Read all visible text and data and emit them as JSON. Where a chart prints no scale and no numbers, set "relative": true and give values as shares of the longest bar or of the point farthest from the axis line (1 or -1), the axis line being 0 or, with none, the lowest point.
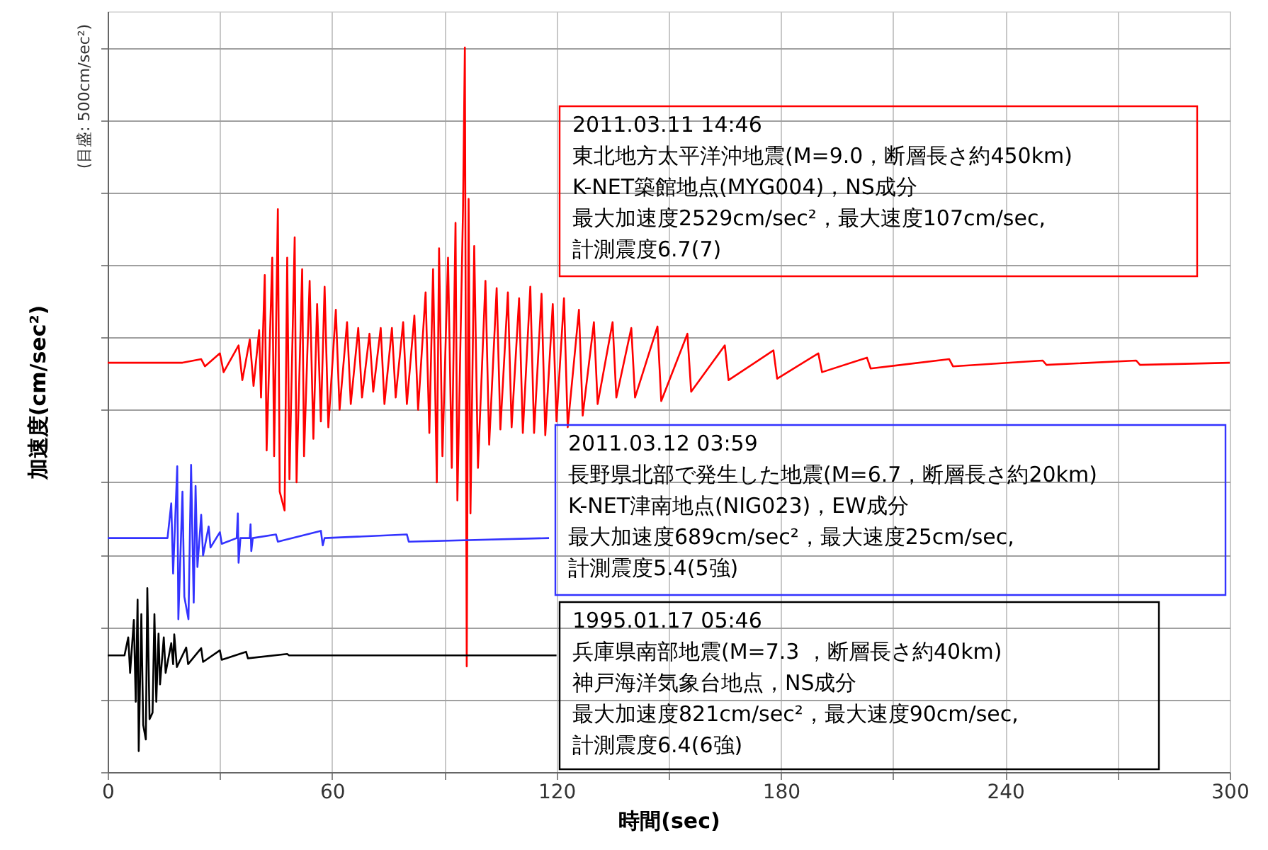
{
  "chart_data": {
    "type": "line",
    "relative": true,
    "xlabel": "時間(sec)",
    "ylabel": "加速度(cm/sec²)",
    "xlim": [
      0,
      300
    ],
    "xticks": [
      0,
      {
        "value": 30,
        "label": null
      },
      60,
      {
        "value": 90,
        "label": null
      },
      120,
      {
        "value": 150,
        "label": null
      },
      180,
      {
        "value": 210,
        "label": null
      },
      240,
      {
        "value": 270,
        "label": null
      },
      300
    ],
    "tick_labels": "x",
    "grid": true,
    "marker": "none",
    "line_style": "solid",
    "series": [
      {
        "color": "#ff0000",
        "x": [
          0,
          20,
          25,
          26,
          30,
          31,
          35,
          36,
          38,
          39,
          40.5,
          41,
          42,
          42.5,
          44,
          44.5,
          45.5,
          46,
          47.3,
          48,
          48.6,
          50,
          50.5,
          52,
          52.5,
          54,
          55,
          56,
          57,
          58,
          59,
          61,
          62,
          64,
          65,
          67,
          68,
          70,
          71,
          73,
          74,
          76,
          77,
          79,
          80,
          82,
          83,
          85,
          86,
          87,
          88,
          88.6,
          89.5,
          91,
          92,
          93,
          93.5,
          95,
          95.5,
          96,
          96.5,
          97,
          98,
          99,
          101,
          102,
          104,
          105,
          107,
          108,
          110,
          111,
          113,
          114,
          116,
          117,
          119,
          120,
          122,
          123,
          126,
          127,
          130,
          131,
          135,
          136,
          140,
          141,
          147,
          148,
          155,
          156,
          165,
          166,
          178,
          179,
          190,
          191,
          203,
          204,
          225,
          226,
          250,
          251,
          275,
          276,
          300
        ],
        "values": [
          0.565,
          0.565,
          0.57,
          0.56,
          0.578,
          0.552,
          0.589,
          0.541,
          0.597,
          0.533,
          0.61,
          0.517,
          0.686,
          0.444,
          0.71,
          0.436,
          0.777,
          0.387,
          0.361,
          0.71,
          0.404,
          0.738,
          0.4,
          0.694,
          0.436,
          0.678,
          0.46,
          0.646,
          0.484,
          0.67,
          0.476,
          0.638,
          0.5,
          0.621,
          0.508,
          0.613,
          0.517,
          0.605,
          0.525,
          0.613,
          0.508,
          0.613,
          0.517,
          0.621,
          0.508,
          0.63,
          0.5,
          0.662,
          0.468,
          0.694,
          0.4,
          0.723,
          0.436,
          0.71,
          0.42,
          0.758,
          0.375,
          0.775,
          1,
          0.146,
          0.791,
          0.357,
          0.726,
          0.42,
          0.678,
          0.452,
          0.668,
          0.473,
          0.662,
          0.476,
          0.654,
          0.468,
          0.67,
          0.468,
          0.66,
          0.465,
          0.646,
          0.484,
          0.654,
          0.476,
          0.638,
          0.492,
          0.621,
          0.508,
          0.621,
          0.517,
          0.613,
          0.517,
          0.615,
          0.512,
          0.605,
          0.525,
          0.589,
          0.541,
          0.582,
          0.543,
          0.578,
          0.552,
          0.572,
          0.557,
          0.57,
          0.56,
          0.568,
          0.562,
          0.568,
          0.562,
          0.565
        ]
      },
      {
        "color": "#3333ff",
        "x": [
          0,
          16,
          17,
          17.5,
          18.6,
          18.9,
          20,
          20.5,
          21.6,
          22.3,
          23,
          23.5,
          24,
          25,
          25.5,
          27,
          27.5,
          30,
          30.5,
          34.5,
          34.8,
          35,
          35.5,
          38,
          38.2,
          38.4,
          38.8,
          45,
          45.5,
          57,
          57.5,
          58,
          80,
          80.5,
          118
        ],
        "values": [
          0.323,
          0.323,
          0.371,
          0.274,
          0.422,
          0.211,
          0.387,
          0.242,
          0.211,
          0.424,
          0.234,
          0.395,
          0.283,
          0.355,
          0.299,
          0.339,
          0.31,
          0.331,
          0.315,
          0.323,
          0.357,
          0.289,
          0.323,
          0.323,
          0.342,
          0.305,
          0.323,
          0.328,
          0.318,
          0.333,
          0.313,
          0.323,
          0.328,
          0.318,
          0.323
        ]
      },
      {
        "color": "#000000",
        "x": [
          0,
          4.5,
          5.5,
          6,
          7,
          7.5,
          8,
          8.3,
          9,
          9.5,
          10.2,
          10.6,
          11.2,
          12,
          12.5,
          13,
          13.6,
          14,
          15,
          15.5,
          17,
          17.5,
          17.8,
          18.5,
          21,
          21.5,
          25,
          25.5,
          30,
          30.5,
          37,
          37.5,
          48,
          48.5,
          120
        ],
        "values": [
          0.161,
          0.161,
          0.186,
          0.137,
          0.21,
          0.097,
          0.238,
          0.029,
          0.218,
          0.065,
          0.045,
          0.254,
          0.073,
          0.082,
          0.218,
          0.097,
          0.191,
          0.121,
          0.186,
          0.137,
          0.178,
          0.149,
          0.19,
          0.145,
          0.172,
          0.149,
          0.171,
          0.152,
          0.168,
          0.155,
          0.166,
          0.157,
          0.163,
          0.161,
          0.161
        ]
      }
    ],
    "annotations": [
      "(目盛: 500cm/sec²)",
      "2011.03.11 14:46",
      "東北地方太平洋沖地震(M=9.0，断層長さ約450km)",
      "K-NET築館地点(MYG004)，NS成分",
      "最大加速度2529cm/sec²，最大速度107cm/sec,",
      "計測震度6.7(7)",
      "2011.03.12 03:59",
      "長野県北部で発生した地震(M=6.7，断層長さ約20km)",
      "K-NET津南地点(NIG023)，EW成分",
      "最大加速度689cm/sec²，最大速度25cm/sec,",
      "計測震度5.4(5強)",
      "1995.01.17 05:46",
      "兵庫県南部地震(M=7.3 ，断層長さ約40km)",
      "神戸海洋気象台地点，NS成分",
      "最大加速度821cm/sec²，最大速度90cm/sec,",
      "計測震度6.4(6強)"
    ]
  }
}
